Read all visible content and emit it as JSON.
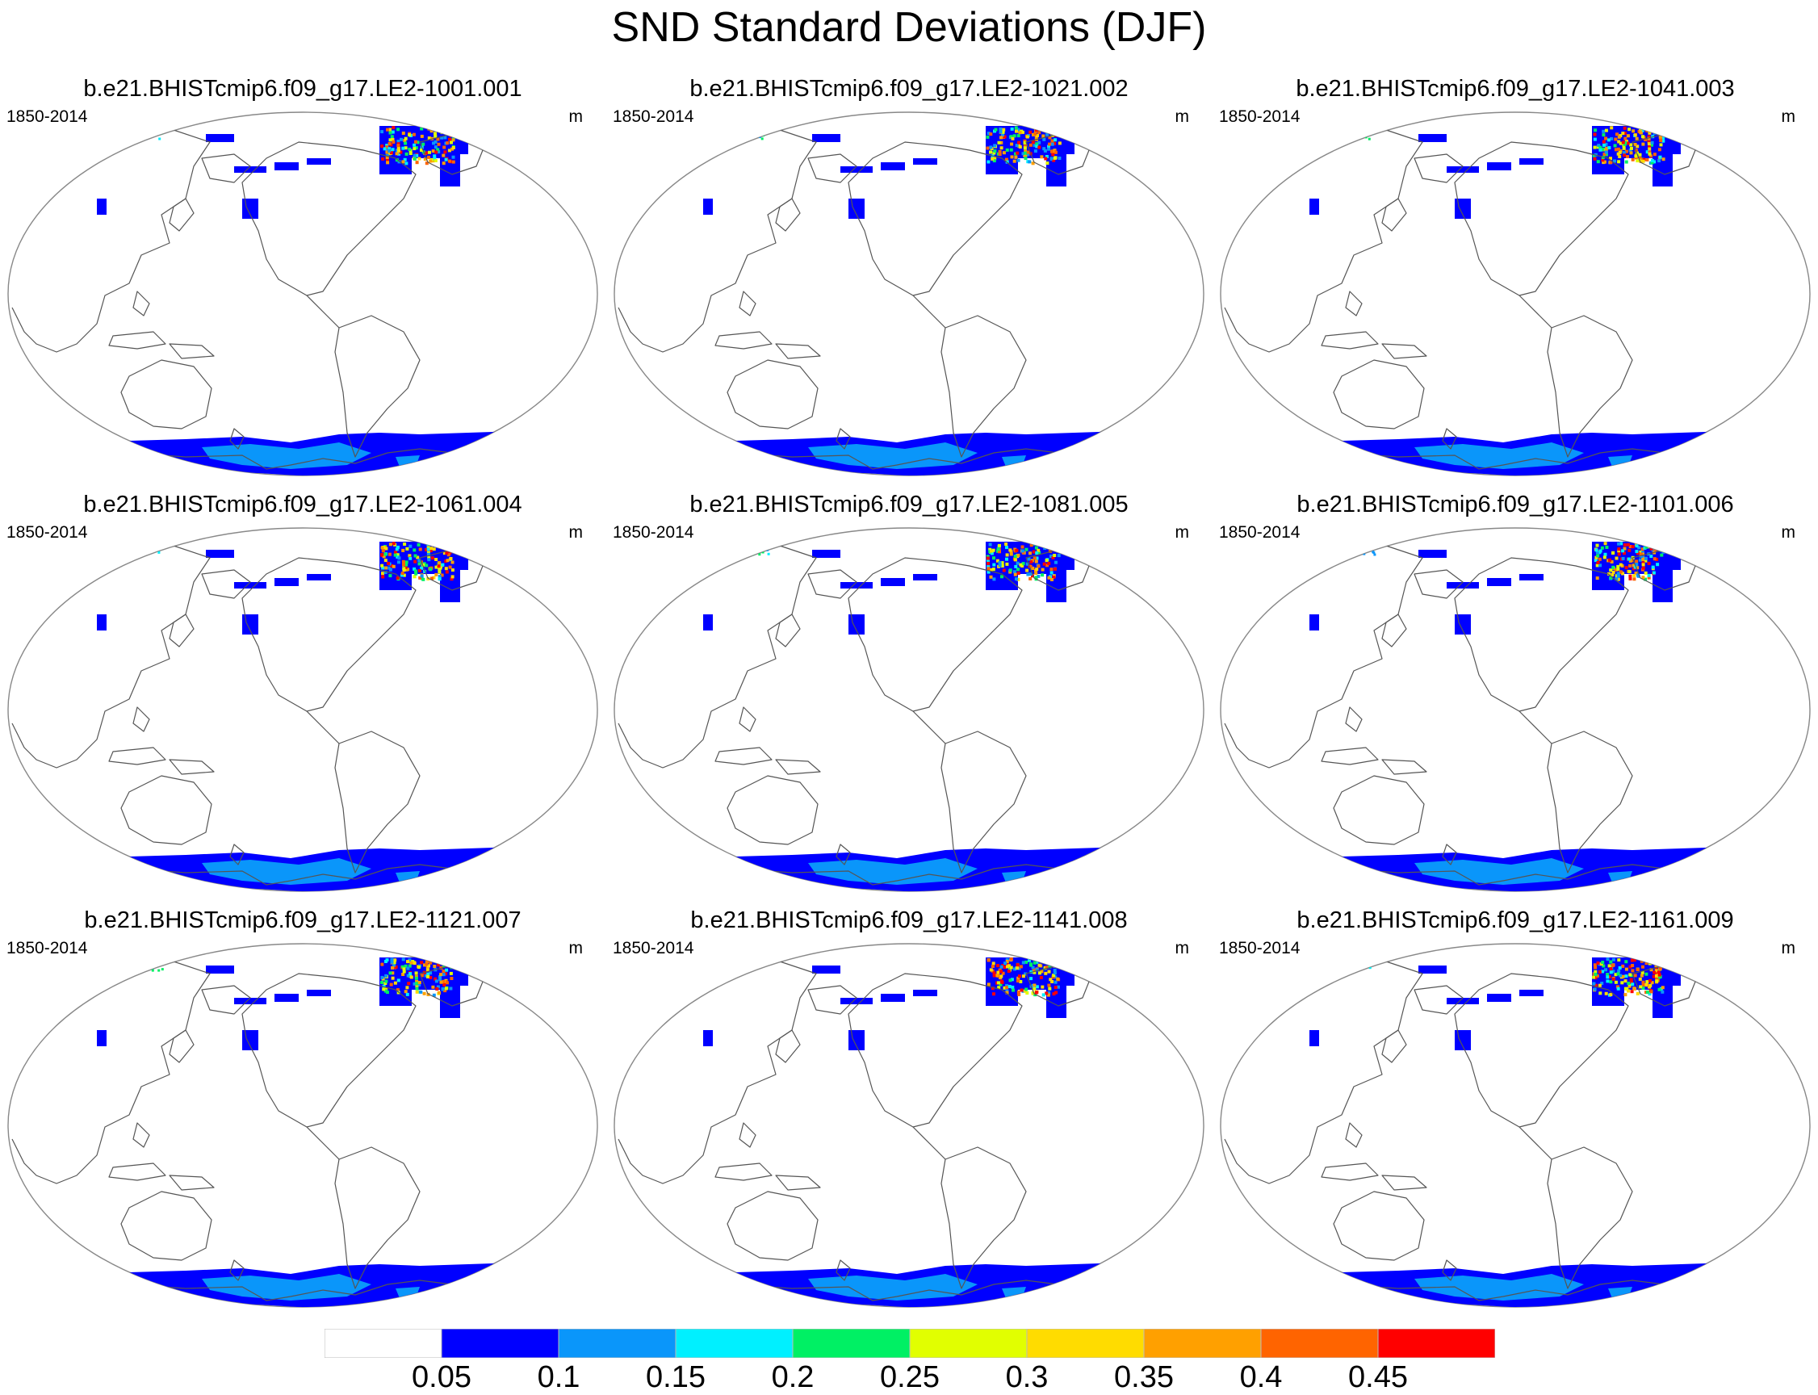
{
  "title": "SND Standard Deviations (DJF)",
  "panels": [
    {
      "title": "b.e21.BHISTcmip6.f09_g17.LE2-1001.001",
      "left_label": "1850-2014",
      "right_label": "m"
    },
    {
      "title": "b.e21.BHISTcmip6.f09_g17.LE2-1021.002",
      "left_label": "1850-2014",
      "right_label": "m"
    },
    {
      "title": "b.e21.BHISTcmip6.f09_g17.LE2-1041.003",
      "left_label": "1850-2014",
      "right_label": "m"
    },
    {
      "title": "b.e21.BHISTcmip6.f09_g17.LE2-1061.004",
      "left_label": "1850-2014",
      "right_label": "m"
    },
    {
      "title": "b.e21.BHISTcmip6.f09_g17.LE2-1081.005",
      "left_label": "1850-2014",
      "right_label": "m"
    },
    {
      "title": "b.e21.BHISTcmip6.f09_g17.LE2-1101.006",
      "left_label": "1850-2014",
      "right_label": "m"
    },
    {
      "title": "b.e21.BHISTcmip6.f09_g17.LE2-1121.007",
      "left_label": "1850-2014",
      "right_label": "m"
    },
    {
      "title": "b.e21.BHISTcmip6.f09_g17.LE2-1141.008",
      "left_label": "1850-2014",
      "right_label": "m"
    },
    {
      "title": "b.e21.BHISTcmip6.f09_g17.LE2-1161.009",
      "left_label": "1850-2014",
      "right_label": "m"
    }
  ],
  "colorbar": {
    "colors": [
      "#ffffff",
      "#0000ff",
      "#0a96fa",
      "#00f0ff",
      "#00f064",
      "#e1ff00",
      "#ffdc00",
      "#ffa000",
      "#ff6400",
      "#ff0000"
    ],
    "labels": [
      "0.05",
      "0.1",
      "0.15",
      "0.2",
      "0.25",
      "0.3",
      "0.35",
      "0.4",
      "0.45"
    ]
  }
}
